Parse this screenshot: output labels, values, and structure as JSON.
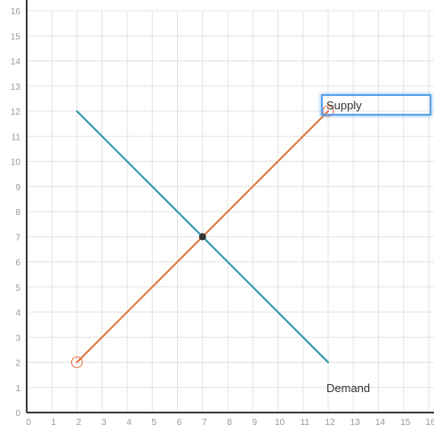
{
  "chart_data": {
    "type": "line",
    "xlim": [
      0,
      16
    ],
    "ylim": [
      0,
      16
    ],
    "x_ticks": [
      0,
      1,
      2,
      3,
      4,
      5,
      6,
      7,
      8,
      9,
      10,
      11,
      12,
      13,
      14,
      15,
      16
    ],
    "y_ticks": [
      0,
      1,
      2,
      3,
      4,
      5,
      6,
      7,
      8,
      9,
      10,
      11,
      12,
      13,
      14,
      15,
      16
    ],
    "grid": true,
    "series": [
      {
        "name": "Demand",
        "color": "#2b93ad",
        "points": [
          [
            2,
            12
          ],
          [
            12,
            2
          ]
        ],
        "label_position": [
          12,
          1
        ]
      },
      {
        "name": "Supply",
        "color": "#e0733d",
        "points": [
          [
            2,
            2
          ],
          [
            12,
            12
          ]
        ],
        "endpoint_markers": "hollow-circle"
      }
    ],
    "intersection": [
      7,
      7
    ]
  },
  "labels": {
    "supply": "Supply",
    "demand": "Demand"
  },
  "colors": {
    "grid": "#e3e3e3",
    "axis": "#3a3a3a",
    "tick_text": "#9a9a9a",
    "selection_border": "#5aa3ec",
    "intersection_point": "#333333"
  }
}
